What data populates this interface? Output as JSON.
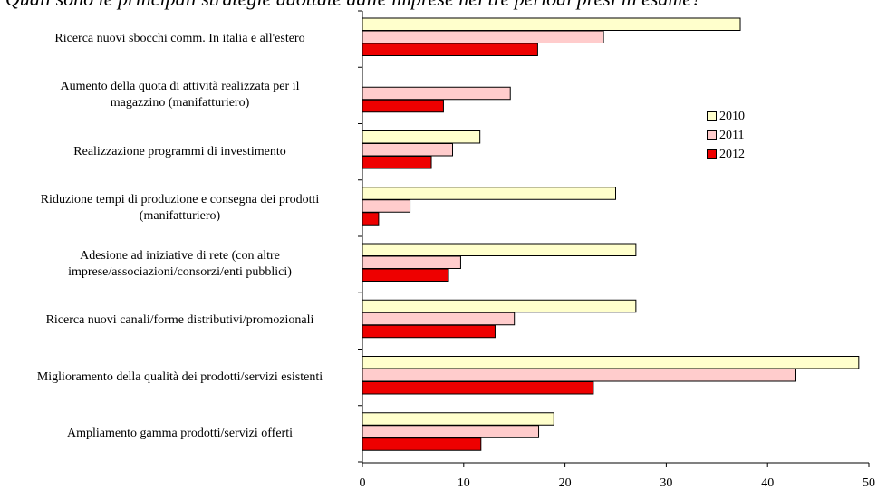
{
  "page_title": "Quali sono le principali strategie adottate dalle imprese nei tre periodi presi in esame?",
  "chart_data": {
    "type": "bar",
    "orientation": "horizontal",
    "categories": [
      "Ricerca nuovi sbocchi comm. In italia e all'estero",
      "Aumento della quota di attività realizzata per il magazzino (manifatturiero)",
      "Realizzazione programmi di investimento",
      "Riduzione tempi di produzione e consegna dei prodotti (manifatturiero)",
      "Adesione ad iniziative di rete (con altre imprese/associazioni/consorzi/enti pubblici)",
      "Ricerca nuovi canali/forme distributivi/promozionali",
      "Miglioramento della qualità dei prodotti/servizi esistenti",
      "Ampliamento gamma prodotti/servizi offerti"
    ],
    "category_lines": [
      [
        "Ricerca nuovi sbocchi comm. In italia e all'estero"
      ],
      [
        "Aumento della quota di attività realizzata per il",
        "magazzino (manifatturiero)"
      ],
      [
        "Realizzazione programmi di investimento"
      ],
      [
        "Riduzione tempi di produzione e consegna dei prodotti",
        "(manifatturiero)"
      ],
      [
        "Adesione ad iniziative di rete (con altre",
        "imprese/associazioni/consorzi/enti pubblici)"
      ],
      [
        "Ricerca nuovi canali/forme distributivi/promozionali"
      ],
      [
        "Miglioramento della qualità dei prodotti/servizi esistenti"
      ],
      [
        "Ampliamento gamma prodotti/servizi offerti"
      ]
    ],
    "series": [
      {
        "name": "2010",
        "color": "#ffffcc",
        "values": [
          37.3,
          0,
          11.6,
          25.0,
          27.0,
          27.0,
          49.0,
          18.9
        ]
      },
      {
        "name": "2011",
        "color": "#ffcccc",
        "values": [
          23.8,
          14.6,
          8.9,
          4.7,
          9.7,
          15.0,
          42.8,
          17.4
        ]
      },
      {
        "name": "2012",
        "color": "#ee0000",
        "values": [
          17.3,
          8.0,
          6.8,
          1.6,
          8.5,
          13.1,
          22.8,
          11.7
        ]
      }
    ],
    "xlim": [
      0,
      50
    ],
    "xticks": [
      "0",
      "10",
      "20",
      "30",
      "40",
      "50"
    ],
    "grid": false,
    "legend_position": "right",
    "xlabel": "",
    "ylabel": "",
    "title": ""
  }
}
